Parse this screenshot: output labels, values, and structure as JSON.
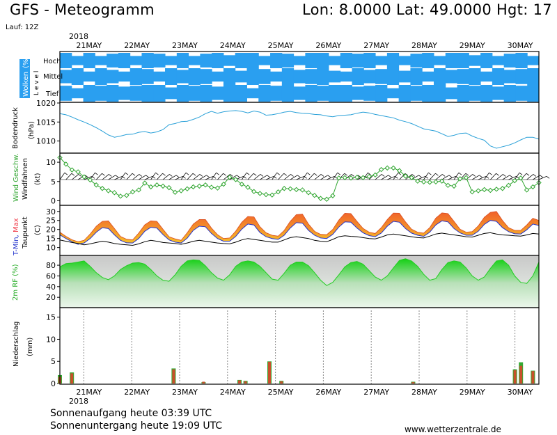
{
  "header": {
    "title": "GFS - Meteogramm",
    "coords": "Lon: 8.0000  Lat: 49.0000  Hgt: 17",
    "run": "Lauf: 12Z"
  },
  "footer": {
    "sunrise": "Sonnenaufgang heute 03:39 UTC",
    "sunset": "Sonnenuntergang heute 19:09 UTC",
    "credit": "www.wetterzentrale.de"
  },
  "colors": {
    "cloud": "#2a9ff0",
    "pressure": "#29a0d8",
    "wind": "#2fa52f",
    "temp_low": "#f7c22a",
    "temp_high": "#f0602a",
    "temp_peak": "#f03a48",
    "humidity": "#22cc22",
    "precip_red": "#c8502a",
    "precip_green": "#33aa33"
  },
  "chart_data": [
    {
      "type": "area",
      "panel": "clouds",
      "title": "",
      "ylabel_parts": [
        "Wolken",
        "(%)"
      ],
      "level_label": "L e v e l",
      "levels": [
        "Hoch",
        "Mittel",
        "Tief"
      ],
      "year": "2018",
      "x_dates": [
        "21MAY",
        "22MAY",
        "23MAY",
        "24MAY",
        "25MAY",
        "26MAY",
        "27MAY",
        "28MAY",
        "29MAY",
        "30MAY"
      ],
      "x_start": "2018-05-20T12:00",
      "x_end": "2018-05-30T12:00",
      "high_cover_pct": [
        100,
        60,
        100,
        60,
        90,
        100,
        60,
        100,
        90,
        60,
        100,
        60,
        90,
        100,
        70,
        100,
        100,
        60,
        100,
        90,
        60,
        100,
        100,
        60,
        100,
        90,
        100,
        60,
        100,
        60,
        90,
        100,
        60,
        100,
        100,
        70,
        100,
        60,
        90,
        100,
        60
      ],
      "mid_cover_pct": [
        80,
        100,
        60,
        100,
        80,
        60,
        100,
        90,
        60,
        100,
        80,
        100,
        90,
        60,
        100,
        70,
        100,
        90,
        60,
        100,
        80,
        90,
        100,
        70,
        60,
        100,
        80,
        90,
        100,
        70,
        100,
        60,
        100,
        80,
        90,
        100,
        60,
        100,
        80,
        90,
        100
      ],
      "low_cover_pct": [
        90,
        60,
        100,
        90,
        100,
        80,
        90,
        100,
        100,
        70,
        100,
        90,
        100,
        80,
        100,
        100,
        60,
        100,
        90,
        100,
        80,
        100,
        90,
        100,
        100,
        80,
        90,
        100,
        60,
        100,
        90,
        100,
        100,
        70,
        100,
        90,
        100,
        80,
        100,
        90,
        100
      ]
    },
    {
      "type": "line",
      "panel": "pressure",
      "ylabel": "Bodendruck",
      "unit": "(hPa)",
      "yticks": [
        1010,
        1015,
        1020
      ],
      "ylim": [
        1007,
        1020
      ],
      "x_start": "2018-05-20T12:00",
      "x_end": "2018-05-30T12:00",
      "series": [
        {
          "values": [
            1017.2,
            1016.9,
            1016.3,
            1015.6,
            1015.0,
            1014.3,
            1013.5,
            1012.6,
            1011.6,
            1011.0,
            1011.3,
            1011.7,
            1011.8,
            1012.3,
            1012.5,
            1012.1,
            1012.4,
            1013.0,
            1014.3,
            1014.6,
            1015.1,
            1015.2,
            1015.7,
            1016.3,
            1017.2,
            1017.8,
            1017.3,
            1017.7,
            1017.9,
            1018.0,
            1017.8,
            1017.4,
            1017.9,
            1017.6,
            1016.8,
            1016.9,
            1017.2,
            1017.6,
            1017.8,
            1017.5,
            1017.3,
            1017.2,
            1017.0,
            1016.9,
            1016.6,
            1016.4,
            1016.7,
            1016.8,
            1016.9,
            1017.3,
            1017.6,
            1017.4,
            1017.0,
            1016.7,
            1016.4,
            1016.1,
            1015.5,
            1015.1,
            1014.6,
            1013.9,
            1013.2,
            1012.9,
            1012.6,
            1011.9,
            1011.2,
            1011.5,
            1012.0,
            1012.1,
            1011.3,
            1010.7,
            1010.2,
            1008.7,
            1008.1,
            1008.5,
            1008.9,
            1009.5,
            1010.3,
            1011.0,
            1011.0,
            1010.5
          ]
        }
      ]
    },
    {
      "type": "line",
      "panel": "wind",
      "ylabel_parts": [
        "Wind Geschw.",
        "Windfahnen"
      ],
      "unit": "(kt)",
      "yticks": [
        0,
        5,
        10
      ],
      "ylim": [
        -1,
        12
      ],
      "x_start": "2018-05-20T12:00",
      "x_end": "2018-05-30T12:00",
      "series": [
        {
          "name": "Wind Geschw.",
          "values": [
            11.2,
            9.5,
            8.0,
            7.5,
            6.2,
            5.4,
            4.1,
            3.2,
            2.6,
            2.1,
            1.2,
            1.4,
            2.3,
            2.8,
            4.6,
            3.6,
            4.1,
            3.8,
            3.4,
            2.2,
            2.6,
            3.1,
            3.6,
            3.8,
            4.1,
            3.5,
            3.3,
            4.3,
            6.1,
            5.5,
            4.3,
            3.5,
            2.4,
            1.9,
            1.6,
            1.5,
            2.3,
            3.2,
            3.1,
            2.9,
            2.8,
            2.1,
            1.4,
            0.6,
            0.4,
            1.3,
            5.9,
            6.0,
            5.9,
            6.1,
            6.0,
            6.3,
            6.7,
            8.1,
            8.5,
            8.5,
            7.8,
            6.4,
            6.0,
            5.1,
            4.9,
            4.8,
            4.9,
            5.1,
            4.0,
            3.8,
            5.7,
            6.0,
            2.3,
            2.6,
            2.9,
            2.7,
            3.0,
            3.2,
            4.0,
            5.2,
            5.9,
            2.8,
            3.6,
            4.7
          ]
        }
      ]
    },
    {
      "type": "area",
      "panel": "temperature",
      "ylabel_parts": [
        "T-Min,",
        "Max",
        "Taupunkt"
      ],
      "unit": "(C)",
      "yticks": [
        10,
        15,
        20,
        25,
        30
      ],
      "ylim": [
        6,
        33
      ],
      "x_start": "2018-05-20T12:00",
      "x_end": "2018-05-30T12:00",
      "series": [
        {
          "name": "Max",
          "values": [
            18.5,
            16.2,
            14.3,
            13.2,
            14.0,
            17.5,
            21.8,
            24.5,
            24.8,
            20.5,
            16.1,
            14.6,
            14.2,
            18.0,
            22.6,
            24.8,
            24.5,
            20.1,
            16.0,
            14.8,
            14.0,
            18.2,
            23.0,
            25.5,
            25.5,
            20.8,
            17.1,
            15.0,
            15.3,
            19.1,
            24.0,
            27.2,
            27.0,
            21.5,
            18.2,
            16.8,
            16.3,
            19.5,
            24.5,
            28.2,
            28.5,
            23.0,
            19.0,
            17.3,
            17.1,
            20.0,
            25.2,
            29.0,
            28.8,
            24.5,
            20.6,
            18.5,
            17.8,
            21.0,
            25.5,
            29.1,
            29.0,
            24.2,
            20.2,
            18.5,
            18.0,
            21.0,
            26.3,
            29.2,
            28.8,
            24.5,
            20.1,
            18.5,
            18.8,
            22.0,
            26.8,
            29.5,
            30.0,
            25.0,
            21.0,
            19.5,
            19.5,
            22.5,
            26.2,
            25.0
          ]
        },
        {
          "name": "T-Min",
          "values": [
            17.0,
            15.0,
            13.2,
            11.8,
            12.5,
            15.0,
            18.5,
            21.0,
            20.5,
            17.0,
            14.0,
            12.6,
            12.5,
            15.0,
            19.0,
            21.2,
            20.8,
            17.2,
            14.2,
            13.0,
            12.5,
            15.2,
            19.5,
            21.8,
            21.5,
            17.8,
            15.0,
            13.5,
            13.5,
            16.2,
            20.2,
            23.0,
            22.5,
            18.3,
            16.0,
            15.0,
            14.5,
            16.8,
            20.8,
            23.8,
            23.5,
            19.5,
            16.8,
            15.3,
            15.0,
            17.3,
            21.3,
            24.2,
            24.0,
            20.8,
            18.2,
            16.6,
            16.0,
            18.0,
            21.8,
            24.5,
            24.0,
            20.5,
            18.0,
            16.8,
            16.2,
            18.5,
            22.5,
            24.8,
            24.2,
            20.5,
            18.1,
            16.8,
            16.8,
            19.0,
            22.8,
            25.0,
            24.5,
            21.0,
            18.8,
            17.6,
            17.5,
            19.8,
            23.0,
            22.2
          ]
        },
        {
          "name": "Taupunkt",
          "values": [
            14.2,
            13.5,
            12.8,
            12.2,
            11.5,
            12.0,
            12.8,
            13.5,
            13.0,
            12.2,
            11.8,
            11.5,
            11.2,
            12.0,
            13.2,
            14.0,
            13.5,
            12.8,
            12.5,
            12.2,
            11.8,
            12.5,
            13.5,
            14.0,
            13.5,
            13.0,
            12.5,
            12.2,
            12.0,
            13.0,
            14.2,
            15.0,
            14.5,
            14.0,
            13.5,
            13.0,
            13.0,
            14.2,
            15.5,
            16.0,
            15.5,
            15.0,
            14.0,
            13.5,
            13.2,
            14.5,
            16.0,
            16.5,
            16.2,
            16.0,
            15.5,
            15.0,
            14.8,
            15.8,
            17.0,
            17.5,
            17.0,
            16.5,
            16.0,
            15.5,
            15.3,
            16.3,
            17.5,
            18.0,
            17.5,
            17.0,
            16.5,
            16.0,
            15.8,
            16.8,
            17.8,
            18.2,
            17.5,
            17.0,
            16.8,
            16.5,
            16.3,
            17.0,
            17.8,
            17.5
          ]
        }
      ]
    },
    {
      "type": "area",
      "panel": "humidity",
      "ylabel": "2m RF (%)",
      "yticks": [
        20,
        40,
        60,
        80
      ],
      "ylim": [
        2,
        97
      ],
      "x_start": "2018-05-20T12:00",
      "x_end": "2018-05-30T12:00",
      "series": [
        {
          "values": [
            77,
            83,
            84,
            86,
            88,
            78,
            66,
            57,
            53,
            60,
            72,
            79,
            84,
            85,
            82,
            72,
            60,
            52,
            50,
            62,
            78,
            88,
            90,
            89,
            79,
            66,
            56,
            52,
            62,
            78,
            86,
            88,
            86,
            78,
            66,
            54,
            52,
            65,
            80,
            86,
            86,
            79,
            66,
            52,
            42,
            48,
            62,
            77,
            85,
            87,
            82,
            70,
            58,
            52,
            60,
            75,
            89,
            92,
            88,
            78,
            63,
            52,
            55,
            72,
            85,
            88,
            86,
            75,
            60,
            52,
            58,
            74,
            88,
            90,
            80,
            60,
            48,
            46,
            60,
            86
          ]
        }
      ]
    },
    {
      "type": "bar",
      "panel": "precipitation",
      "ylabel": "Niederschlag",
      "unit": "(mm)",
      "yticks": [
        0,
        5,
        10,
        15
      ],
      "ylim": [
        0,
        17
      ],
      "x_start": "2018-05-20T12:00",
      "x_end": "2018-05-30T12:00",
      "x_dates": [
        "21MAY",
        "22MAY",
        "23MAY",
        "24MAY",
        "25MAY",
        "26MAY",
        "27MAY",
        "28MAY",
        "29MAY",
        "30MAY"
      ],
      "year": "2018",
      "series": [
        {
          "name": "red",
          "points": [
            [
              "2018-05-20T12:00",
              1.5
            ],
            [
              "2018-05-20T18:00",
              2.3
            ],
            [
              "2018-05-22T21:00",
              3.2
            ],
            [
              "2018-05-23T12:00",
              0.4
            ],
            [
              "2018-05-24T06:00",
              0.7
            ],
            [
              "2018-05-24T09:00",
              0.5
            ],
            [
              "2018-05-24T21:00",
              4.9
            ],
            [
              "2018-05-25T03:00",
              0.5
            ],
            [
              "2018-05-27T21:00",
              0.3
            ],
            [
              "2018-05-30T00:00",
              3.0
            ],
            [
              "2018-05-30T03:00",
              4.0
            ],
            [
              "2018-05-30T09:00",
              2.8
            ]
          ]
        },
        {
          "name": "green",
          "points": [
            [
              "2018-05-20T12:00",
              1.9
            ],
            [
              "2018-05-20T18:00",
              2.5
            ],
            [
              "2018-05-22T21:00",
              3.4
            ],
            [
              "2018-05-23T12:00",
              0.3
            ],
            [
              "2018-05-24T06:00",
              0.8
            ],
            [
              "2018-05-24T09:00",
              0.6
            ],
            [
              "2018-05-24T21:00",
              5.0
            ],
            [
              "2018-05-25T03:00",
              0.6
            ],
            [
              "2018-05-27T21:00",
              0.4
            ],
            [
              "2018-05-30T00:00",
              3.2
            ],
            [
              "2018-05-30T03:00",
              4.8
            ],
            [
              "2018-05-30T09:00",
              2.9
            ]
          ]
        }
      ]
    }
  ]
}
